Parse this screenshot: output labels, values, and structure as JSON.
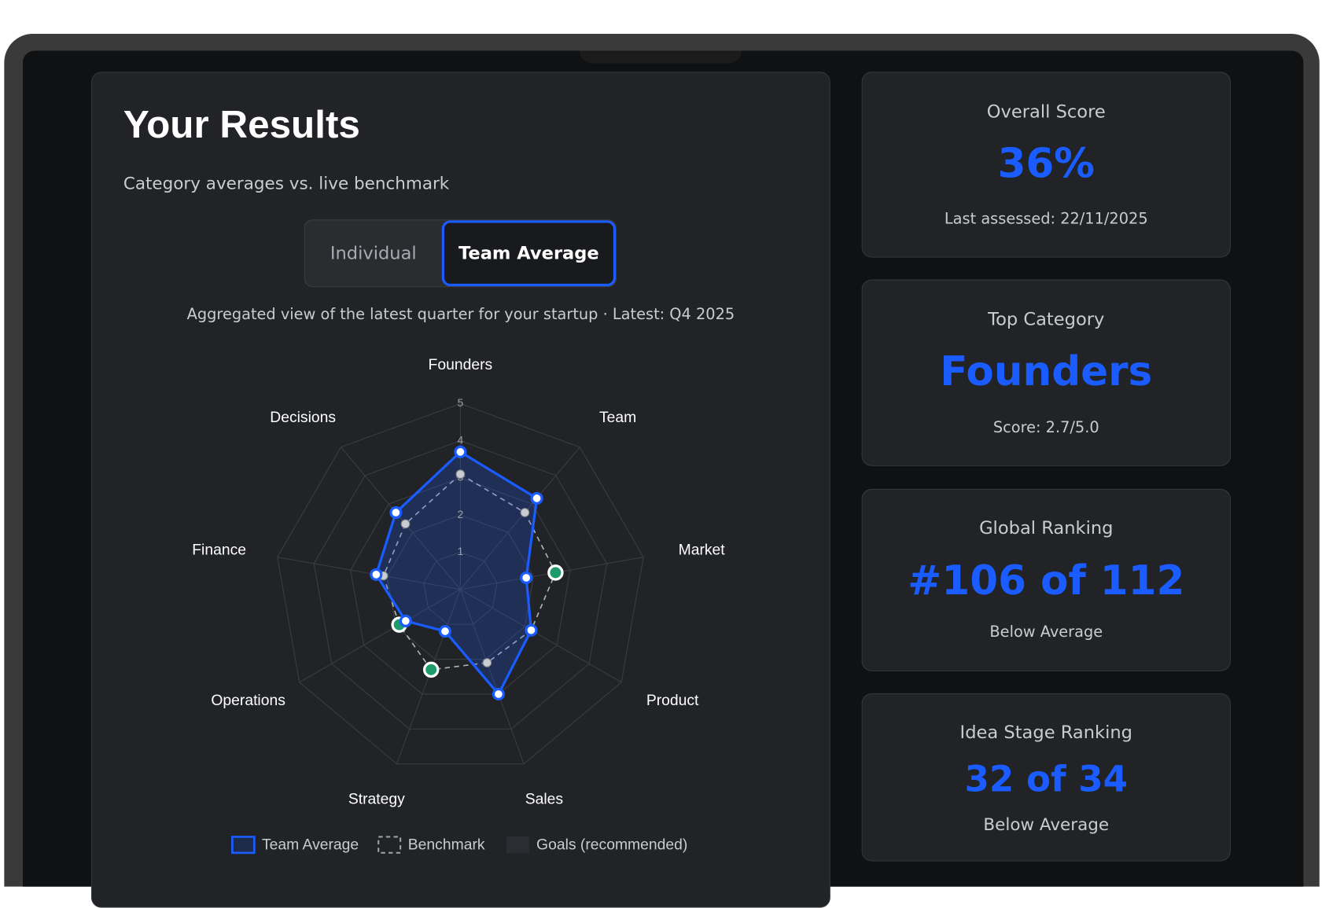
{
  "header": {
    "title": "Your Results",
    "subtitle": "Category averages vs. live benchmark"
  },
  "toggle": {
    "options": [
      "Individual",
      "Team Average"
    ],
    "active": 1
  },
  "chart_data": {
    "type": "radar",
    "note": "Aggregated view of the latest quarter for your startup · Latest: Q4 2025",
    "categories": [
      "Founders",
      "Team",
      "Market",
      "Product",
      "Sales",
      "Strategy",
      "Operations",
      "Finance",
      "Decisions"
    ],
    "rlim": [
      0,
      5
    ],
    "rticks": [
      1,
      2,
      3,
      4,
      5
    ],
    "grid": true,
    "highlight_color": "#1f9a6a",
    "series": [
      {
        "name": "Team Average",
        "color": "#1a5cff",
        "values": [
          3.7,
          3.2,
          1.8,
          2.2,
          3.0,
          1.2,
          1.7,
          2.3,
          2.7
        ]
      },
      {
        "name": "Benchmark",
        "color": "#9aa0a6",
        "values": [
          3.1,
          2.7,
          2.6,
          2.2,
          2.1,
          2.3,
          1.9,
          2.1,
          2.3
        ]
      },
      {
        "name": "Goals (recommended)",
        "color": "#2a2d31",
        "hidden": true
      }
    ]
  },
  "stats": [
    {
      "label": "Overall Score",
      "value": "36%",
      "note": "Last assessed: 22/11/2025"
    },
    {
      "label": "Top Category",
      "value": "Founders",
      "note": "Score: 2.7/5.0"
    },
    {
      "label": "Global Ranking",
      "value": "#106 of 112",
      "note": "Below Average"
    },
    {
      "label": "Idea Stage Ranking",
      "value": "32 of 34",
      "note": "Below Average"
    }
  ]
}
